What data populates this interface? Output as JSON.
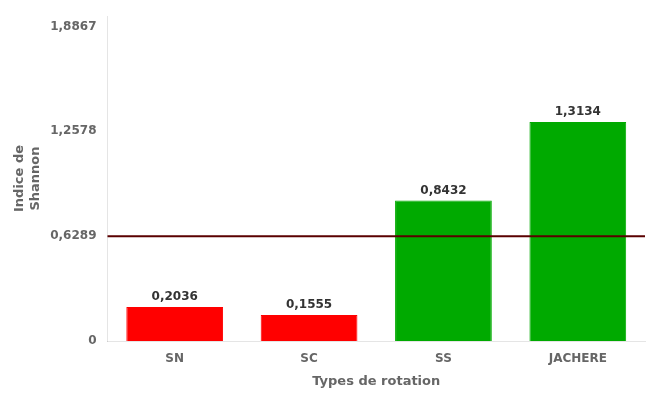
{
  "chart_data": {
    "type": "bar",
    "categories": [
      "SN",
      "SC",
      "SS",
      "JACHERE"
    ],
    "values": [
      0.2036,
      0.1555,
      0.8432,
      1.3134
    ],
    "value_labels": [
      "0,2036",
      "0,1555",
      "0,8432",
      "1,3134"
    ],
    "data_labels": true,
    "colors": [
      "#ff0000",
      "#ff0000",
      "#00aa00",
      "#00aa00"
    ],
    "mean_line": {
      "value": 0.6289,
      "color": "#5a0000"
    },
    "xlabel": "Types de rotation",
    "ylabel": [
      "Indice de",
      "Shannon"
    ],
    "ylim": [
      0,
      1.95
    ],
    "yticks": [
      0,
      {
        "value": 0.6289,
        "label": "0,6289"
      },
      {
        "value": 1.2578,
        "label": "1,2578"
      },
      {
        "value": 1.8867,
        "label": "1,8867"
      }
    ],
    "grid": false
  }
}
